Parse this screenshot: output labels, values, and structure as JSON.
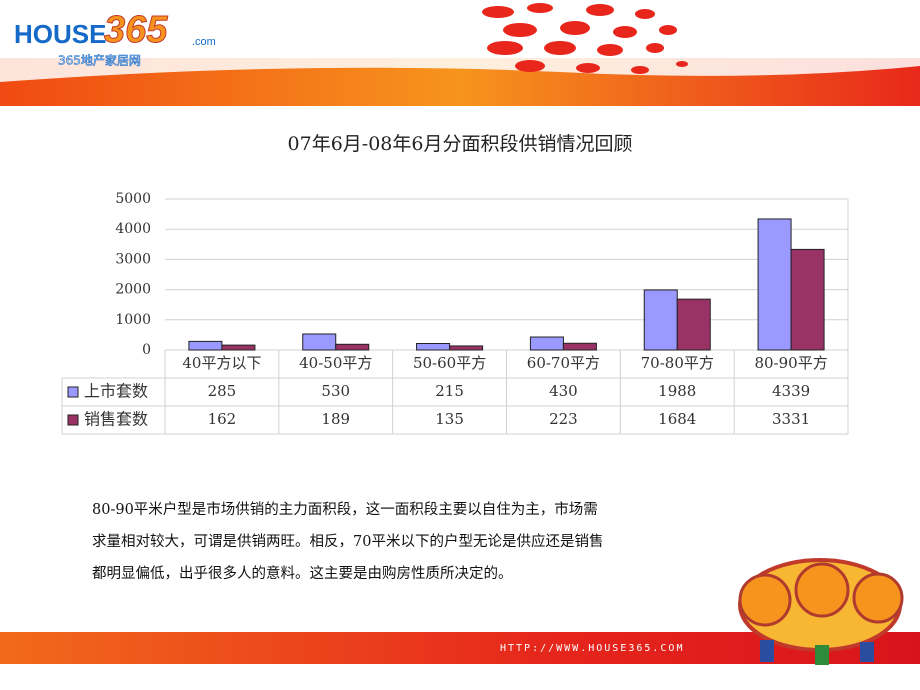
{
  "header": {
    "logo_main": "HOUSE",
    "logo_number": "365",
    "logo_domain": ".com",
    "logo_tagline": "365地产家居网"
  },
  "chart_data": {
    "type": "bar",
    "title": "07年6月-08年6月分面积段供销情况回顾",
    "categories": [
      "40平方以下",
      "40-50平方",
      "50-60平方",
      "60-70平方",
      "70-80平方",
      "80-90平方"
    ],
    "series": [
      {
        "name": "上市套数",
        "color": "#9999ff",
        "values": [
          285,
          530,
          215,
          430,
          1988,
          4339
        ]
      },
      {
        "name": "销售套数",
        "color": "#993366",
        "values": [
          162,
          189,
          135,
          223,
          1684,
          3331
        ]
      }
    ],
    "ylim": [
      0,
      5000
    ],
    "yticks": [
      0,
      1000,
      2000,
      3000,
      4000,
      5000
    ],
    "grid": true,
    "data_table": true
  },
  "paragraph": [
    "80-90平米户型是市场供销的主力面积段，这一面积段主要以自住为主，市场需",
    "求量相对较大，可谓是供销两旺。相反，70平米以下的户型无论是供应还是销售",
    "都明显偏低，出乎很多人的意料。这主要是由购房性质所决定的。"
  ],
  "footer": {
    "url": "HTTP://WWW.HOUSE365.COM"
  }
}
